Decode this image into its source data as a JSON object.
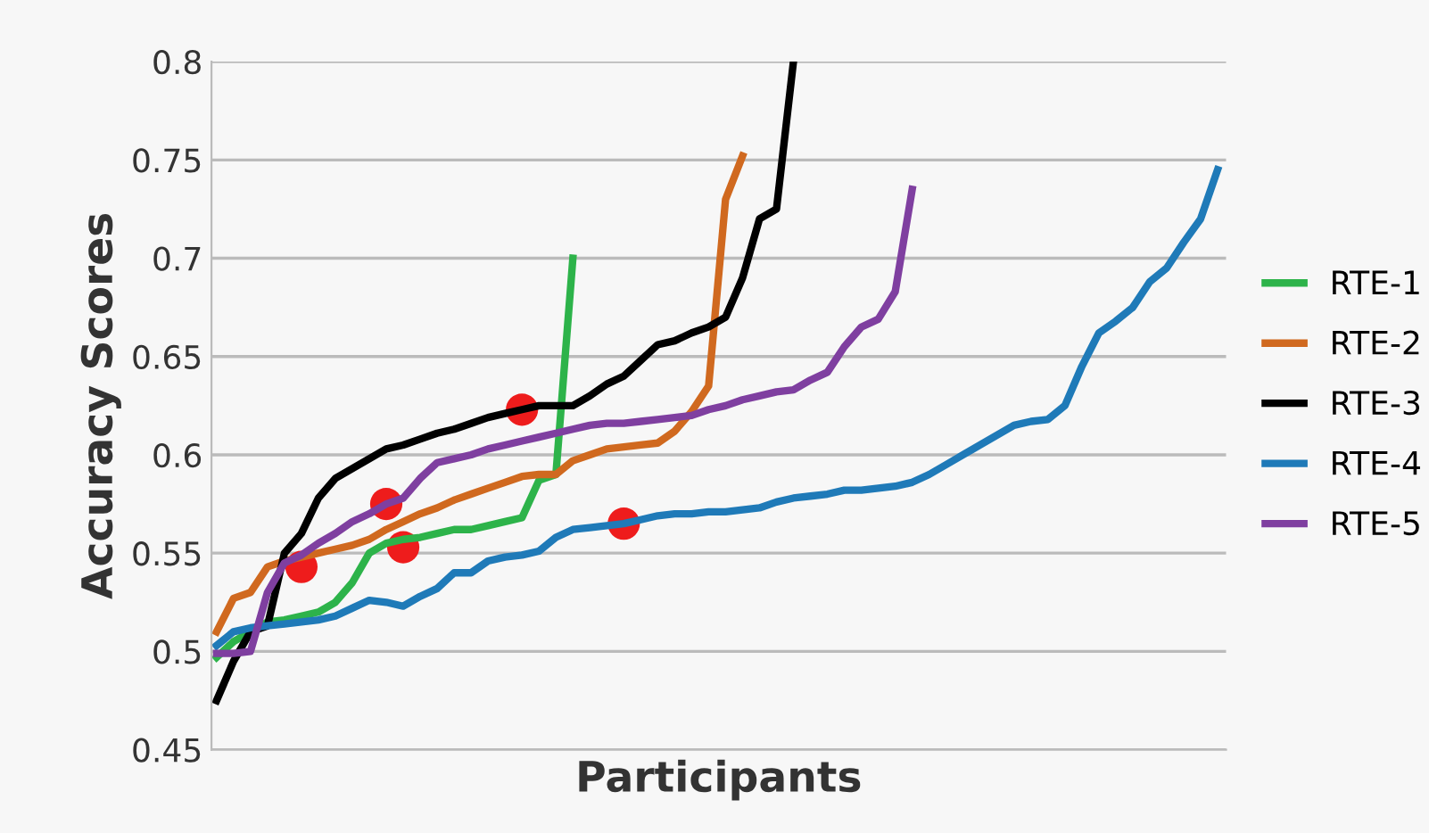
{
  "chart_data": {
    "type": "line",
    "xlabel": "Participants",
    "ylabel": "Accuracy Scores",
    "categories": [
      null,
      null,
      null,
      null,
      null,
      null,
      null,
      null,
      null,
      null,
      null,
      null,
      null,
      null,
      null,
      null,
      null,
      null,
      null,
      null,
      null,
      null,
      null,
      null,
      null,
      null,
      null,
      null,
      null,
      null,
      null,
      null,
      null,
      null,
      null,
      null,
      null,
      null,
      null,
      null,
      null,
      null,
      null,
      null,
      null,
      null,
      null,
      null,
      null,
      null,
      null,
      null,
      null,
      null,
      null,
      null,
      null,
      null,
      null,
      null
    ],
    "series": [
      {
        "name": "RTE-1",
        "color": "#2db34a",
        "values": [
          0.497,
          0.505,
          0.51,
          0.515,
          0.516,
          0.518,
          0.52,
          0.525,
          0.535,
          0.55,
          0.555,
          0.557,
          0.558,
          0.56,
          0.562,
          0.562,
          0.564,
          0.566,
          0.568,
          0.587,
          0.59,
          0.7,
          null,
          null,
          null,
          null,
          null,
          null,
          null,
          null,
          null,
          null,
          null,
          null,
          null,
          null,
          null,
          null,
          null,
          null,
          null,
          null,
          null,
          null,
          null,
          null,
          null,
          null,
          null,
          null,
          null,
          null,
          null,
          null,
          null,
          null,
          null,
          null,
          null,
          null
        ]
      },
      {
        "name": "RTE-2",
        "color": "#d0691f",
        "values": [
          0.51,
          0.527,
          0.53,
          0.543,
          0.546,
          0.548,
          0.55,
          0.552,
          0.554,
          0.557,
          0.562,
          0.566,
          0.57,
          0.573,
          0.577,
          0.58,
          0.583,
          0.586,
          0.589,
          0.59,
          0.59,
          0.597,
          0.6,
          0.603,
          0.604,
          0.605,
          0.606,
          0.612,
          0.622,
          0.635,
          0.73,
          0.752,
          null,
          null,
          null,
          null,
          null,
          null,
          null,
          null,
          null,
          null,
          null,
          null,
          null,
          null,
          null,
          null,
          null,
          null,
          null,
          null,
          null,
          null,
          null,
          null,
          null,
          null,
          null,
          null
        ]
      },
      {
        "name": "RTE-3",
        "color": "#000000",
        "values": [
          0.475,
          0.495,
          0.51,
          0.513,
          0.55,
          0.56,
          0.578,
          0.588,
          0.593,
          0.598,
          0.603,
          0.605,
          0.608,
          0.611,
          0.613,
          0.616,
          0.619,
          0.621,
          0.623,
          0.625,
          0.625,
          0.625,
          0.63,
          0.636,
          0.64,
          0.648,
          0.656,
          0.658,
          0.662,
          0.665,
          0.67,
          0.69,
          0.72,
          0.725,
          0.8,
          null,
          null,
          null,
          null,
          null,
          null,
          null,
          null,
          null,
          null,
          null,
          null,
          null,
          null,
          null,
          null,
          null,
          null,
          null,
          null,
          null,
          null,
          null,
          null,
          null
        ]
      },
      {
        "name": "RTE-4",
        "color": "#1f7ab8",
        "values": [
          0.503,
          0.51,
          0.512,
          0.513,
          0.514,
          0.515,
          0.516,
          0.518,
          0.522,
          0.526,
          0.525,
          0.523,
          0.528,
          0.532,
          0.54,
          0.54,
          0.546,
          0.548,
          0.549,
          0.551,
          0.558,
          0.562,
          0.563,
          0.564,
          0.565,
          0.567,
          0.569,
          0.57,
          0.57,
          0.571,
          0.571,
          0.572,
          0.573,
          0.576,
          0.578,
          0.579,
          0.58,
          0.582,
          0.582,
          0.583,
          0.584,
          0.586,
          0.59,
          0.595,
          0.6,
          0.605,
          0.61,
          0.615,
          0.617,
          0.618,
          0.625,
          0.645,
          0.662,
          0.668,
          0.675,
          0.688,
          0.695,
          0.708,
          0.72,
          0.745
        ]
      },
      {
        "name": "RTE-5",
        "color": "#7f3fa0",
        "values": [
          0.499,
          0.499,
          0.5,
          0.53,
          0.545,
          0.549,
          0.555,
          0.56,
          0.566,
          0.57,
          0.575,
          0.578,
          0.588,
          0.596,
          0.598,
          0.6,
          0.603,
          0.605,
          0.607,
          0.609,
          0.611,
          0.613,
          0.615,
          0.616,
          0.616,
          0.617,
          0.618,
          0.619,
          0.62,
          0.623,
          0.625,
          0.628,
          0.63,
          0.632,
          0.633,
          0.638,
          0.642,
          0.655,
          0.665,
          0.669,
          0.683,
          0.735,
          null,
          null,
          null,
          null,
          null,
          null,
          null,
          null,
          null,
          null,
          null,
          null,
          null,
          null,
          null,
          null,
          null,
          null
        ]
      },
      {
        "type": "scatter",
        "marker": "circle",
        "color": "#ee1c1c",
        "values": [
          null,
          null,
          null,
          null,
          null,
          0.543,
          null,
          null,
          null,
          null,
          0.575,
          0.553,
          null,
          null,
          null,
          null,
          null,
          null,
          0.623,
          null,
          null,
          null,
          null,
          null,
          0.565,
          null,
          null,
          null,
          null,
          null,
          null,
          null,
          null,
          null,
          null,
          null,
          null,
          null,
          null,
          null,
          null,
          null,
          null,
          null,
          null,
          null,
          null,
          null,
          null,
          null,
          null,
          null,
          null,
          null,
          null,
          null,
          null,
          null,
          null,
          null
        ]
      }
    ],
    "ylim": [
      0.45,
      0.8
    ],
    "yticks": [
      0.45,
      0.5,
      0.55,
      0.6,
      0.65,
      0.7,
      0.75,
      0.8
    ],
    "tick_labels": "y",
    "grid": "y",
    "legend": "right",
    "marker": "none",
    "line_style": "solid"
  }
}
